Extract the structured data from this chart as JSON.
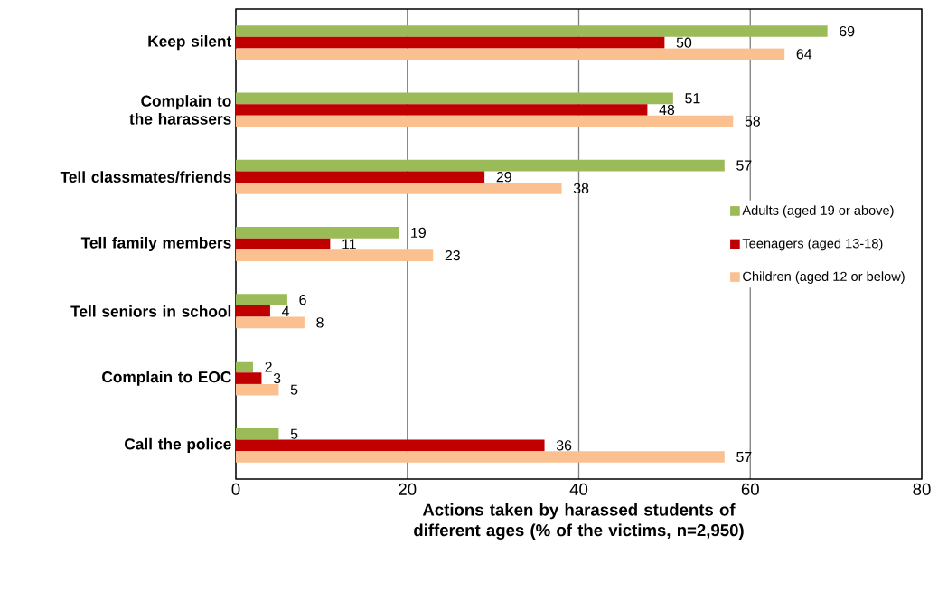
{
  "chart_data": {
    "type": "bar",
    "orientation": "horizontal",
    "xlabel": "Actions taken by harassed students of different ages (% of the victims, n=2,950)",
    "categories": [
      "Keep silent",
      "Complain to the harassers",
      "Tell classmates/friends",
      "Tell family members",
      "Tell seniors in school",
      "Complain to EOC",
      "Call the police"
    ],
    "series": [
      {
        "name": "Adults (aged 19 or above)",
        "color": "#9bbb59",
        "values": [
          69,
          51,
          57,
          19,
          6,
          2,
          5
        ]
      },
      {
        "name": "Teenagers (aged 13-18)",
        "color": "#c00000",
        "values": [
          50,
          48,
          29,
          11,
          4,
          3,
          36
        ]
      },
      {
        "name": "Children (aged 12 or below)",
        "color": "#fac090",
        "values": [
          64,
          58,
          38,
          23,
          8,
          5,
          57
        ]
      }
    ],
    "xlim": [
      0,
      80
    ],
    "xticks": [
      0,
      20,
      40,
      60,
      80
    ],
    "grid": "x",
    "legend": "right",
    "data_labels": true
  }
}
